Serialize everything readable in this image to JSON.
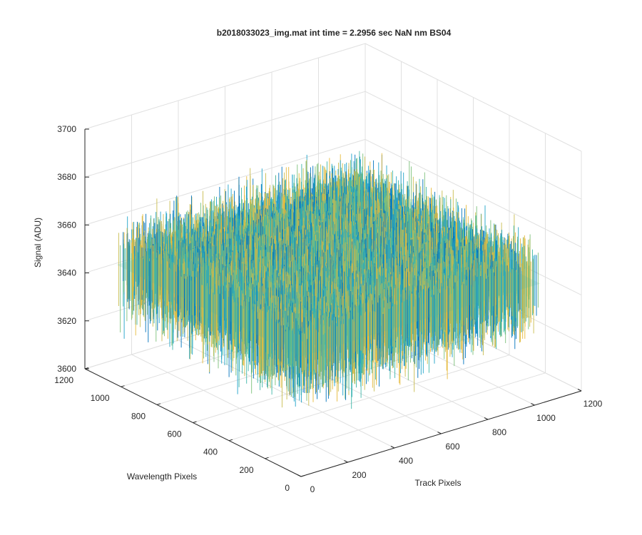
{
  "chart_data": {
    "type": "surface",
    "title": "b2018033023_img.mat int time = 2.2956 sec  NaN nm BS04",
    "xlabel": "Track Pixels",
    "ylabel": "Wavelength Pixels",
    "zlabel": "Signal (ADU)",
    "xlim": [
      0,
      1200
    ],
    "ylim": [
      0,
      1200
    ],
    "zlim": [
      3600,
      3700
    ],
    "x_ticks": [
      "0",
      "200",
      "400",
      "600",
      "800",
      "1000",
      "1200"
    ],
    "y_ticks": [
      "0",
      "200",
      "400",
      "600",
      "800",
      "1000",
      "1200"
    ],
    "z_ticks": [
      "3600",
      "3620",
      "3640",
      "3660",
      "3680",
      "3700"
    ],
    "data_extent": {
      "x": [
        0,
        1024
      ],
      "y": [
        0,
        1024
      ]
    },
    "signal_mean": 3650,
    "signal_range": [
      3600,
      3700
    ],
    "colormap": [
      "#0072BD",
      "#1FA3C9",
      "#3FB6A8",
      "#7CC07A",
      "#C9BC4F",
      "#E6B93A"
    ],
    "grid": true,
    "view": "3d-isometric"
  }
}
